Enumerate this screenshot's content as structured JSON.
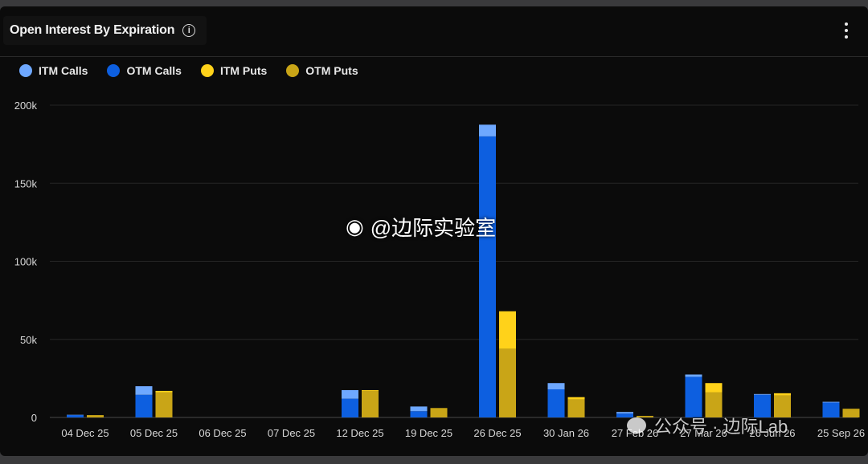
{
  "header": {
    "title": "Open Interest By Expiration",
    "info_icon": "info-icon",
    "menu_icon": "more-vertical-icon"
  },
  "legend": [
    {
      "label": "ITM Calls",
      "color": "#6ea8ff"
    },
    {
      "label": "OTM Calls",
      "color": "#0d5fe0"
    },
    {
      "label": "ITM Puts",
      "color": "#ffd21a"
    },
    {
      "label": "OTM Puts",
      "color": "#c9a517"
    }
  ],
  "watermark": {
    "weibo": "@边际实验室",
    "wechat": "公众号 · 边际Lab"
  },
  "chart_data": {
    "type": "bar",
    "title": "Open Interest By Expiration",
    "stacked": true,
    "categories": [
      "04 Dec 25",
      "05 Dec 25",
      "06 Dec 25",
      "07 Dec 25",
      "12 Dec 25",
      "19 Dec 25",
      "26 Dec 25",
      "30 Jan 26",
      "27 Feb 26",
      "27 Mar 26",
      "26 Jun 26",
      "25 Sep 26"
    ],
    "series": [
      {
        "name": "OTM Calls",
        "group": "calls",
        "color": "#0d5fe0",
        "values": [
          1500,
          14500,
          0,
          0,
          12000,
          4000,
          180000,
          18000,
          2500,
          26000,
          14500,
          9500
        ]
      },
      {
        "name": "ITM Calls",
        "group": "calls",
        "color": "#6ea8ff",
        "values": [
          200,
          5500,
          0,
          0,
          5500,
          3000,
          7500,
          4000,
          1000,
          1500,
          500,
          500
        ]
      },
      {
        "name": "OTM Puts",
        "group": "puts",
        "color": "#c9a517",
        "values": [
          1500,
          16000,
          0,
          0,
          17000,
          5800,
          44000,
          11500,
          800,
          16000,
          14000,
          5000
        ]
      },
      {
        "name": "ITM Puts",
        "group": "puts",
        "color": "#ffd21a",
        "values": [
          0,
          1000,
          0,
          0,
          500,
          200,
          24000,
          1500,
          100,
          6000,
          1500,
          500
        ]
      }
    ],
    "y_ticks": [
      "0",
      "50k",
      "100k",
      "150k",
      "200k"
    ],
    "ylim": [
      0,
      200000
    ],
    "grid": true,
    "legend_position": "top-left"
  }
}
